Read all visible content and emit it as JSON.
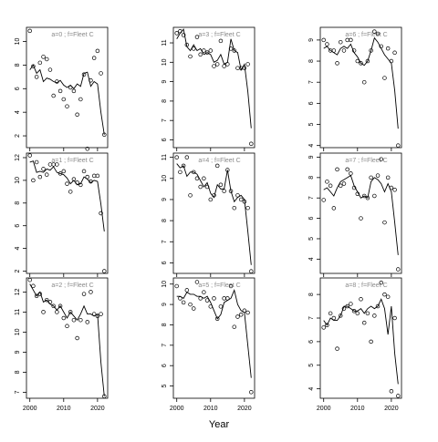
{
  "chart_data": {
    "type": "scatter",
    "xlabel": "Year",
    "x_tick_labels": [
      "2000",
      "2010",
      "2020"
    ],
    "x_ticks": [
      2000,
      2010,
      2020
    ],
    "xlim": [
      1999,
      2023
    ],
    "panels": [
      {
        "label": "a=0 ; f=Fleet C",
        "ylim": [
          1,
          11.2
        ],
        "yticks": [
          2,
          4,
          6,
          8,
          10
        ],
        "observed": {
          "x": [
            2000,
            2001,
            2002,
            2003,
            2004,
            2005,
            2006,
            2007,
            2008,
            2009,
            2010,
            2011,
            2012,
            2013,
            2014,
            2015,
            2016,
            2017,
            2018,
            2019,
            2020,
            2021,
            2022
          ],
          "y": [
            10.9,
            7.9,
            7.0,
            8.2,
            8.7,
            8.5,
            7.6,
            5.4,
            6.6,
            5.8,
            5.1,
            4.5,
            6.1,
            5.8,
            3.8,
            5.1,
            7.2,
            0.9,
            6.7,
            8.6,
            9.2,
            7.3,
            2.1
          ]
        },
        "fitted": {
          "x": [
            2000,
            2001,
            2002,
            2003,
            2004,
            2005,
            2006,
            2007,
            2008,
            2009,
            2010,
            2011,
            2012,
            2013,
            2014,
            2015,
            2016,
            2017,
            2018,
            2019,
            2020,
            2021,
            2022
          ],
          "y": [
            7.6,
            8.0,
            7.3,
            7.6,
            6.6,
            6.9,
            6.8,
            6.6,
            6.5,
            6.7,
            6.3,
            6.1,
            6.3,
            6.0,
            6.4,
            6.2,
            7.3,
            7.4,
            6.2,
            6.6,
            6.4,
            4.0,
            2.1
          ]
        }
      },
      {
        "label": "a=1 ; f=Fleet C",
        "ylim": [
          1.8,
          12.4
        ],
        "yticks": [
          2,
          4,
          6,
          8,
          10,
          12
        ],
        "observed": {
          "x": [
            2000,
            2001,
            2002,
            2003,
            2004,
            2005,
            2006,
            2007,
            2008,
            2009,
            2010,
            2011,
            2012,
            2013,
            2014,
            2015,
            2016,
            2017,
            2018,
            2019,
            2020,
            2021,
            2022
          ],
          "y": [
            12.2,
            10.0,
            11.6,
            10.3,
            11.0,
            10.5,
            11.4,
            11.4,
            11.4,
            10.6,
            10.8,
            9.7,
            9.0,
            10.1,
            9.8,
            9.6,
            10.8,
            10.3,
            9.9,
            10.4,
            10.4,
            7.1,
            2.0
          ]
        },
        "fitted": {
          "x": [
            2000,
            2001,
            2002,
            2003,
            2004,
            2005,
            2006,
            2007,
            2008,
            2009,
            2010,
            2011,
            2012,
            2013,
            2014,
            2015,
            2016,
            2017,
            2018,
            2019,
            2020,
            2021,
            2022
          ],
          "y": [
            11.6,
            11.7,
            10.7,
            10.8,
            10.7,
            11.0,
            10.9,
            11.2,
            10.7,
            10.6,
            10.5,
            10.2,
            9.7,
            10.0,
            9.6,
            9.7,
            10.3,
            10.1,
            9.8,
            10.0,
            9.9,
            7.9,
            5.5
          ]
        }
      },
      {
        "label": "a=2 ; f=Fleet C",
        "ylim": [
          6.7,
          12.7
        ],
        "yticks": [
          7,
          8,
          9,
          10,
          11,
          12
        ],
        "observed": {
          "x": [
            2000,
            2001,
            2002,
            2003,
            2004,
            2005,
            2006,
            2007,
            2008,
            2009,
            2010,
            2011,
            2012,
            2013,
            2014,
            2015,
            2016,
            2017,
            2018,
            2019,
            2020,
            2021,
            2022
          ],
          "y": [
            12.6,
            12.3,
            11.8,
            11.9,
            11.0,
            11.6,
            11.5,
            11.3,
            11.0,
            11.3,
            10.7,
            10.3,
            11.0,
            10.6,
            9.7,
            10.6,
            11.9,
            10.5,
            12.0,
            10.9,
            10.8,
            10.9,
            6.8
          ]
        },
        "fitted": {
          "x": [
            2000,
            2001,
            2002,
            2003,
            2004,
            2005,
            2006,
            2007,
            2008,
            2009,
            2010,
            2011,
            2012,
            2013,
            2014,
            2015,
            2016,
            2017,
            2018,
            2019,
            2020,
            2021,
            2022
          ],
          "y": [
            12.4,
            12.1,
            11.8,
            12.0,
            11.5,
            11.6,
            11.4,
            11.3,
            11.1,
            11.3,
            11.0,
            10.7,
            11.0,
            10.8,
            10.6,
            10.9,
            11.3,
            10.9,
            10.9,
            10.8,
            10.9,
            8.5,
            6.8
          ]
        }
      },
      {
        "label": "a=3 ; f=Fleet C",
        "ylim": [
          5.6,
          11.8
        ],
        "yticks": [
          6,
          7,
          8,
          9,
          10,
          11
        ],
        "observed": {
          "x": [
            2000,
            2001,
            2002,
            2003,
            2004,
            2005,
            2006,
            2007,
            2008,
            2009,
            2010,
            2011,
            2012,
            2013,
            2014,
            2015,
            2016,
            2017,
            2018,
            2019,
            2020,
            2021,
            2022
          ],
          "y": [
            11.5,
            11.6,
            11.4,
            10.9,
            10.3,
            10.7,
            11.3,
            10.4,
            10.6,
            10.5,
            10.6,
            9.8,
            9.9,
            11.1,
            9.8,
            9.9,
            10.7,
            10.6,
            9.7,
            9.7,
            9.7,
            9.9,
            5.8
          ]
        },
        "fitted": {
          "x": [
            2000,
            2001,
            2002,
            2003,
            2004,
            2005,
            2006,
            2007,
            2008,
            2009,
            2010,
            2011,
            2012,
            2013,
            2014,
            2015,
            2016,
            2017,
            2018,
            2019,
            2020,
            2021,
            2022
          ],
          "y": [
            11.2,
            11.5,
            11.7,
            10.8,
            10.6,
            10.9,
            10.6,
            10.7,
            10.4,
            10.5,
            10.4,
            10.0,
            10.1,
            10.4,
            9.9,
            10.0,
            11.2,
            10.6,
            10.5,
            9.6,
            9.9,
            8.5,
            6.6
          ]
        }
      },
      {
        "label": "a=4 ; f=Fleet C",
        "ylim": [
          5.5,
          11.2
        ],
        "yticks": [
          6,
          7,
          8,
          9,
          10,
          11
        ],
        "observed": {
          "x": [
            2000,
            2001,
            2002,
            2003,
            2004,
            2005,
            2006,
            2007,
            2008,
            2009,
            2010,
            2011,
            2012,
            2013,
            2014,
            2015,
            2016,
            2017,
            2018,
            2019,
            2020,
            2021,
            2022
          ],
          "y": [
            11.0,
            10.3,
            10.6,
            11.0,
            9.2,
            10.3,
            10.0,
            9.6,
            10.0,
            9.6,
            9.0,
            9.2,
            10.6,
            9.7,
            9.4,
            10.4,
            9.4,
            8.6,
            9.2,
            9.0,
            8.9,
            8.6,
            5.6
          ]
        },
        "fitted": {
          "x": [
            2000,
            2001,
            2002,
            2003,
            2004,
            2005,
            2006,
            2007,
            2008,
            2009,
            2010,
            2011,
            2012,
            2013,
            2014,
            2015,
            2016,
            2017,
            2018,
            2019,
            2020,
            2021,
            2022
          ],
          "y": [
            10.7,
            10.5,
            10.6,
            10.1,
            10.3,
            10.3,
            10.2,
            9.9,
            9.6,
            9.8,
            9.3,
            9.1,
            9.7,
            9.5,
            9.5,
            10.4,
            9.4,
            8.9,
            9.1,
            9.2,
            9.0,
            7.5,
            5.9
          ]
        }
      },
      {
        "label": "a=5 ; f=Fleet C",
        "ylim": [
          4.4,
          10.3
        ],
        "yticks": [
          5,
          6,
          7,
          8,
          9,
          10
        ],
        "observed": {
          "x": [
            2000,
            2001,
            2002,
            2003,
            2004,
            2005,
            2006,
            2007,
            2008,
            2009,
            2010,
            2011,
            2012,
            2013,
            2014,
            2015,
            2016,
            2017,
            2018,
            2019,
            2020,
            2021,
            2022
          ],
          "y": [
            9.9,
            9.3,
            9.1,
            9.7,
            9.0,
            8.8,
            10.1,
            9.3,
            9.6,
            9.2,
            8.9,
            9.3,
            8.3,
            8.9,
            9.3,
            9.3,
            9.9,
            7.9,
            8.4,
            8.5,
            8.7,
            8.6,
            4.7
          ]
        },
        "fitted": {
          "x": [
            2000,
            2001,
            2002,
            2003,
            2004,
            2005,
            2006,
            2007,
            2008,
            2009,
            2010,
            2011,
            2012,
            2013,
            2014,
            2015,
            2016,
            2017,
            2018,
            2019,
            2020,
            2021,
            2022
          ],
          "y": [
            9.4,
            9.4,
            9.3,
            9.6,
            9.5,
            9.5,
            9.4,
            9.4,
            9.3,
            9.4,
            9.1,
            8.7,
            8.3,
            8.5,
            9.1,
            9.2,
            9.3,
            9.7,
            9.0,
            8.7,
            8.6,
            7.0,
            5.4
          ]
        }
      },
      {
        "label": "a=6 ; f=Fleet C",
        "ylim": [
          3.9,
          9.6
        ],
        "yticks": [
          4,
          5,
          6,
          7,
          8,
          9
        ],
        "observed": {
          "x": [
            2000,
            2001,
            2002,
            2003,
            2004,
            2005,
            2006,
            2007,
            2008,
            2009,
            2010,
            2011,
            2012,
            2013,
            2014,
            2015,
            2016,
            2017,
            2018,
            2019,
            2020,
            2021,
            2022
          ],
          "y": [
            9.0,
            8.8,
            8.5,
            8.5,
            7.9,
            8.9,
            8.5,
            9.0,
            9.0,
            8.5,
            8.0,
            7.9,
            7.0,
            8.0,
            8.5,
            9.4,
            9.3,
            8.7,
            7.2,
            8.6,
            8.0,
            8.4,
            4.0
          ]
        },
        "fitted": {
          "x": [
            2000,
            2001,
            2002,
            2003,
            2004,
            2005,
            2006,
            2007,
            2008,
            2009,
            2010,
            2011,
            2012,
            2013,
            2014,
            2015,
            2016,
            2017,
            2018,
            2019,
            2020,
            2021,
            2022
          ],
          "y": [
            8.6,
            8.7,
            8.5,
            8.4,
            8.3,
            8.6,
            8.7,
            8.6,
            8.8,
            8.4,
            8.2,
            7.9,
            7.8,
            8.0,
            8.5,
            9.1,
            8.9,
            8.6,
            8.3,
            8.1,
            7.9,
            6.6,
            4.8
          ]
        }
      },
      {
        "label": "a=7 ; f=Fleet C",
        "ylim": [
          3.3,
          9.2
        ],
        "yticks": [
          4,
          5,
          6,
          7,
          8,
          9
        ],
        "observed": {
          "x": [
            2000,
            2001,
            2002,
            2003,
            2004,
            2005,
            2006,
            2007,
            2008,
            2009,
            2010,
            2011,
            2012,
            2013,
            2014,
            2015,
            2016,
            2017,
            2018,
            2019,
            2020,
            2021,
            2022
          ],
          "y": [
            6.9,
            7.8,
            7.6,
            6.5,
            8.4,
            7.6,
            7.7,
            8.4,
            8.2,
            7.5,
            7.2,
            6.0,
            7.1,
            7.0,
            8.0,
            7.1,
            8.1,
            8.9,
            5.8,
            8.0,
            7.5,
            7.4,
            3.5
          ]
        },
        "fitted": {
          "x": [
            2000,
            2001,
            2002,
            2003,
            2004,
            2005,
            2006,
            2007,
            2008,
            2009,
            2010,
            2011,
            2012,
            2013,
            2014,
            2015,
            2016,
            2017,
            2018,
            2019,
            2020,
            2021,
            2022
          ],
          "y": [
            7.4,
            7.5,
            7.3,
            7.1,
            7.5,
            7.8,
            7.9,
            8.0,
            8.1,
            7.6,
            7.3,
            7.0,
            7.1,
            7.0,
            7.8,
            8.0,
            7.9,
            7.7,
            7.3,
            7.7,
            7.3,
            5.8,
            4.2
          ]
        }
      },
      {
        "label": "a=8 ; f=Fleet C",
        "ylim": [
          3.6,
          8.7
        ],
        "yticks": [
          4,
          5,
          6,
          7,
          8
        ],
        "observed": {
          "x": [
            2000,
            2001,
            2002,
            2003,
            2004,
            2005,
            2006,
            2007,
            2008,
            2009,
            2010,
            2011,
            2012,
            2013,
            2014,
            2015,
            2016,
            2017,
            2018,
            2019,
            2020,
            2021,
            2022
          ],
          "y": [
            6.6,
            6.7,
            7.2,
            7.0,
            5.7,
            7.1,
            7.4,
            7.5,
            7.6,
            7.3,
            7.2,
            7.8,
            6.8,
            7.2,
            6.0,
            7.1,
            7.5,
            8.5,
            8.0,
            7.9,
            3.9,
            7.0,
            3.7
          ]
        },
        "fitted": {
          "x": [
            2000,
            2001,
            2002,
            2003,
            2004,
            2005,
            2006,
            2007,
            2008,
            2009,
            2010,
            2011,
            2012,
            2013,
            2014,
            2015,
            2016,
            2017,
            2018,
            2019,
            2020,
            2021,
            2022
          ],
          "y": [
            6.9,
            6.7,
            7.0,
            6.9,
            6.9,
            7.1,
            7.5,
            7.5,
            7.4,
            7.3,
            7.3,
            7.4,
            7.2,
            7.4,
            7.5,
            7.4,
            7.5,
            7.8,
            7.4,
            6.3,
            7.5,
            5.5,
            4.2
          ]
        }
      }
    ]
  }
}
